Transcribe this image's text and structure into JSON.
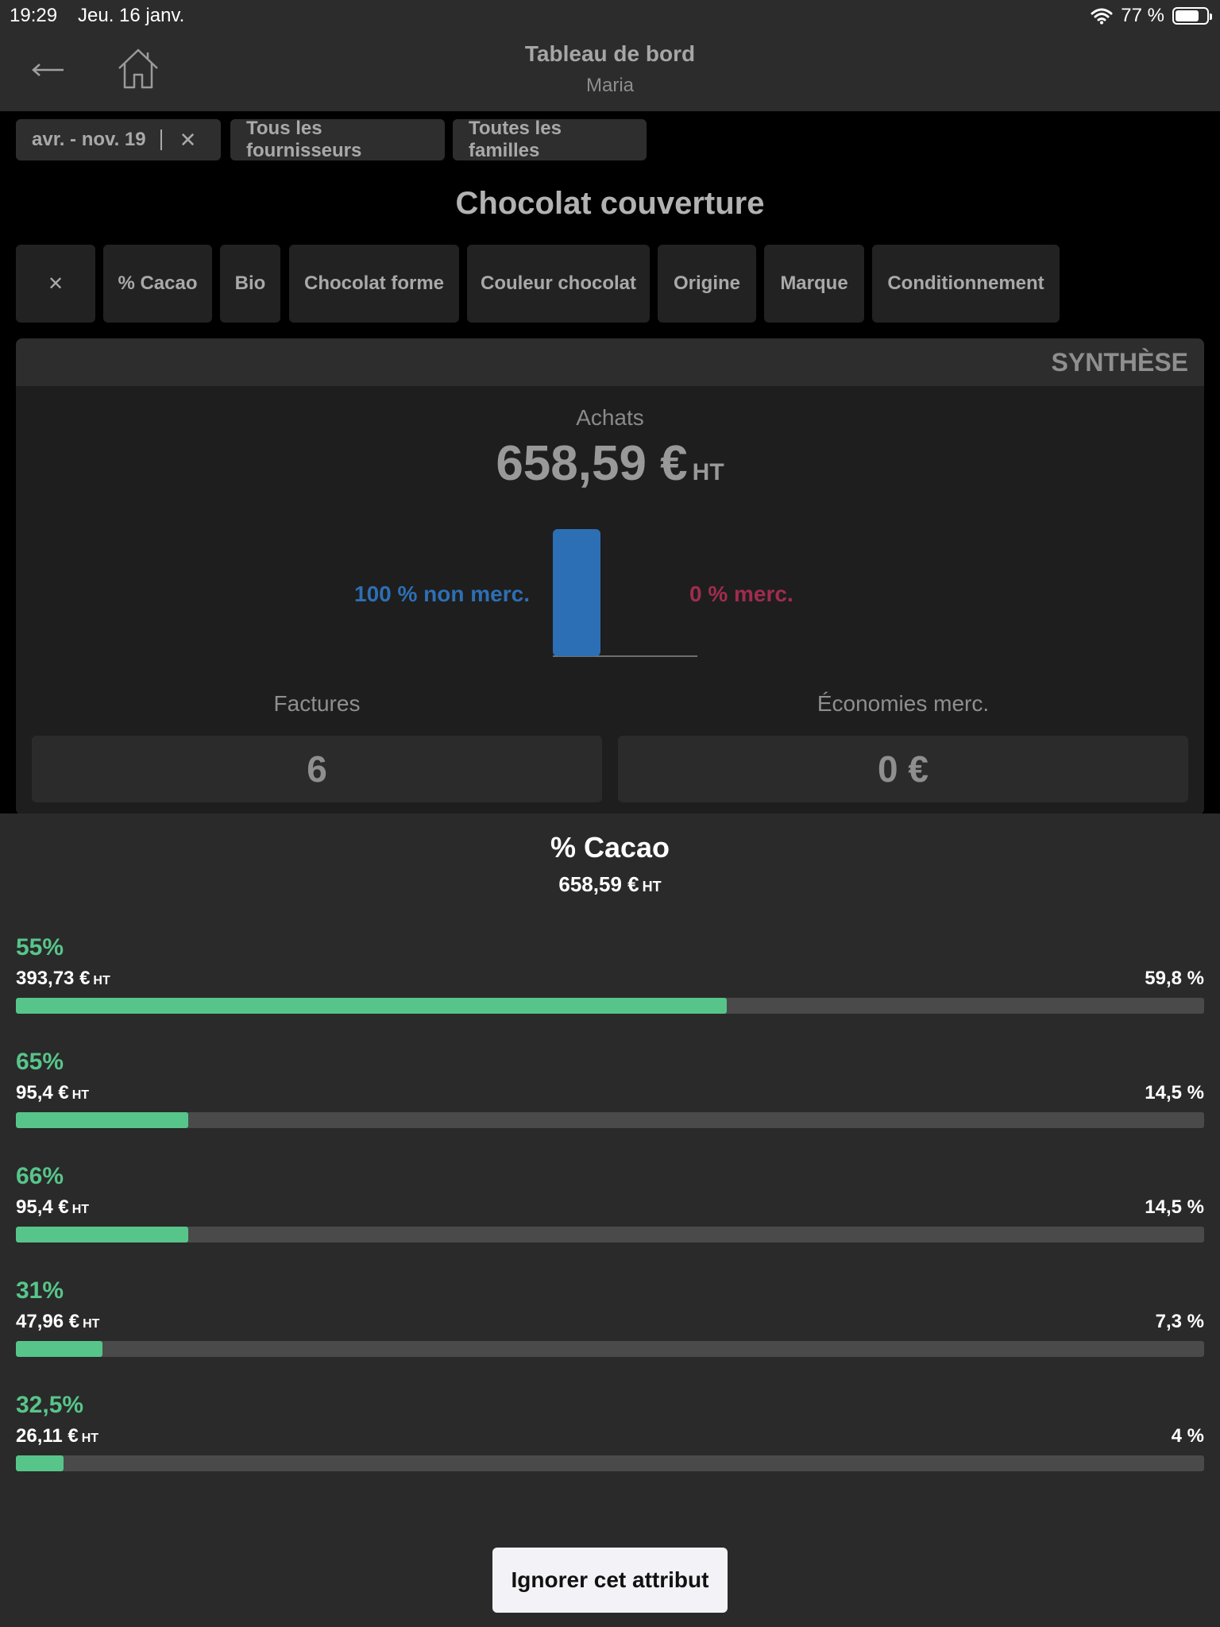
{
  "status_bar": {
    "time": "19:29",
    "date": "Jeu. 16 janv.",
    "battery_text": "77 %",
    "battery_level": 0.77,
    "wifi_icon": "wifi-icon"
  },
  "header": {
    "title": "Tableau de bord",
    "subtitle": "Maria",
    "back_icon": "back-arrow-icon",
    "home_icon": "home-icon"
  },
  "filters": {
    "period": "avr. - nov. 19",
    "suppliers": "Tous les fournisseurs",
    "families": "Toutes les familles",
    "clear_symbol": "✕"
  },
  "section_title": "Chocolat couverture",
  "attribute_tabs": {
    "clear_symbol": "✕",
    "items": [
      "% Cacao",
      "Bio",
      "Chocolat forme",
      "Couleur chocolat",
      "Origine",
      "Marque",
      "Conditionnement"
    ]
  },
  "synthese": {
    "header": "SYNTHÈSE",
    "achats_label": "Achats",
    "achats_value": "658,59 €",
    "achats_unit": "HT",
    "non_merc_label": "100 % non merc.",
    "merc_label": "0 % merc.",
    "factures_label": "Factures",
    "factures_value": "6",
    "economies_label": "Économies merc.",
    "economies_value": "0 €",
    "colors": {
      "non_merc": "#2d6fb4",
      "merc": "#a02c4e"
    }
  },
  "chart_data": {
    "type": "bar",
    "categories": [
      "non merc.",
      "merc."
    ],
    "values": [
      100,
      0
    ],
    "ylim": [
      0,
      100
    ],
    "colors": [
      "#2d6fb4",
      "#a02c4e"
    ]
  },
  "breakdown": {
    "title": "% Cacao",
    "total_value": "658,59 €",
    "total_unit": "HT",
    "accent": "#57c58a",
    "rows": [
      {
        "label": "55%",
        "amount": "393,73 €",
        "unit": "HT",
        "percent_text": "59,8 %",
        "share": 0.598
      },
      {
        "label": "65%",
        "amount": "95,4 €",
        "unit": "HT",
        "percent_text": "14,5 %",
        "share": 0.145
      },
      {
        "label": "66%",
        "amount": "95,4 €",
        "unit": "HT",
        "percent_text": "14,5 %",
        "share": 0.145
      },
      {
        "label": "31%",
        "amount": "47,96 €",
        "unit": "HT",
        "percent_text": "7,3 %",
        "share": 0.073
      },
      {
        "label": "32,5%",
        "amount": "26,11 €",
        "unit": "HT",
        "percent_text": "4 %",
        "share": 0.04
      }
    ]
  },
  "ignore_button": "Ignorer cet attribut"
}
